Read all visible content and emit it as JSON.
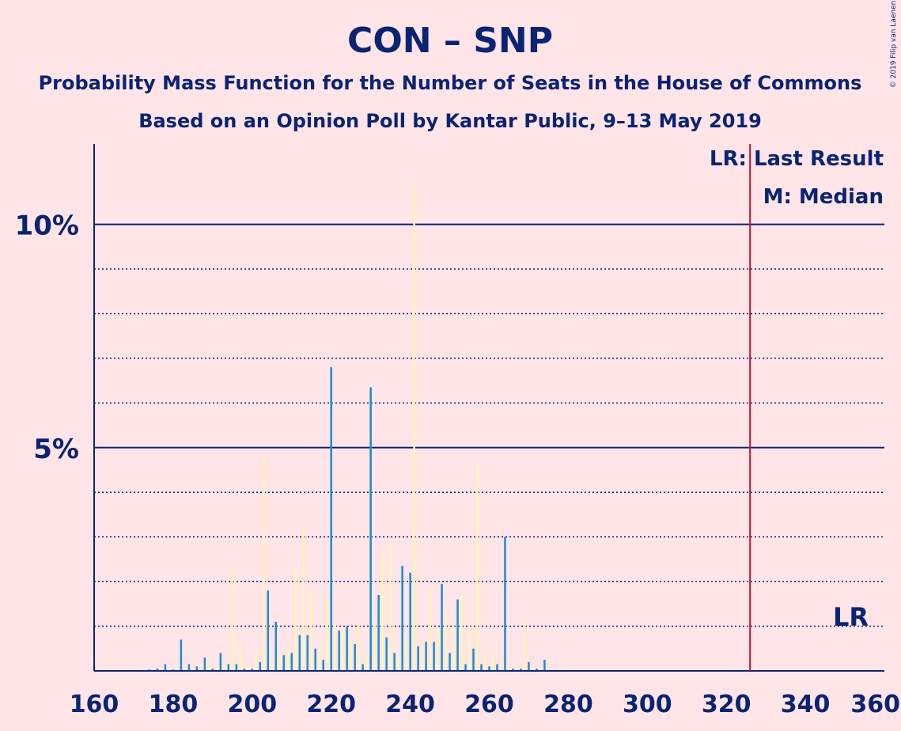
{
  "chart_data": {
    "type": "bar",
    "title": "CON – SNP",
    "subtitle": "Probability Mass Function for the Number of Seats in the House of Commons",
    "subtitle2": "Based on an Opinion Poll by Kantar Public, 9–13 May 2019",
    "copyright": "© 2019 Filip van Laenen",
    "xlim": [
      160,
      360
    ],
    "ylim": [
      0,
      11.8
    ],
    "x_ticks": [
      160,
      180,
      200,
      220,
      240,
      260,
      280,
      300,
      320,
      340,
      360
    ],
    "x_tick_labels": [
      "160",
      "180",
      "200",
      "220",
      "240",
      "260",
      "280",
      "300",
      "320",
      "340",
      "360"
    ],
    "y_major_ticks": [
      5,
      10
    ],
    "y_tick_labels": [
      "5%",
      "10%"
    ],
    "y_minor_ticks": [
      1,
      2,
      3,
      4,
      6,
      7,
      8,
      9
    ],
    "legend": {
      "position": "top-right",
      "entries": [
        "LR: Last Result",
        "M: Median"
      ]
    },
    "last_result": {
      "x": 326,
      "label": "LR"
    },
    "colors": {
      "background": "#ffe4e8",
      "axis": "#0a2472",
      "bar_blue": "#1e8bd0",
      "bar_yellow": "#fff5b5",
      "last_result_line": "#c8102e"
    },
    "series": [
      {
        "color_key": "bar_blue",
        "x": [
          174,
          176,
          178,
          180,
          182,
          184,
          186,
          188,
          190,
          192,
          194,
          196,
          198,
          200,
          202,
          204,
          206,
          208,
          210,
          212,
          214,
          216,
          218,
          220,
          222,
          224,
          226,
          228,
          230,
          232,
          234,
          236,
          238,
          240,
          242,
          244,
          246,
          248,
          250,
          252,
          254,
          256,
          258,
          260,
          262,
          264,
          266,
          268,
          270,
          272,
          274
        ],
        "values": [
          0.03,
          0.05,
          0.15,
          0.03,
          0.7,
          0.15,
          0.1,
          0.3,
          0.05,
          0.4,
          0.15,
          0.15,
          0.05,
          0.05,
          0.2,
          1.8,
          1.1,
          0.35,
          0.4,
          0.8,
          0.8,
          0.5,
          0.25,
          6.8,
          0.9,
          1.0,
          0.6,
          0.15,
          6.35,
          1.7,
          0.75,
          0.4,
          2.35,
          2.2,
          0.55,
          0.65,
          0.65,
          1.95,
          0.4,
          1.6,
          0.15,
          0.5,
          0.15,
          0.1,
          0.15,
          3.0,
          0.05,
          0.05,
          0.2,
          0.05,
          0.25
        ]
      },
      {
        "color_key": "bar_yellow",
        "x": [
          175,
          177,
          179,
          181,
          183,
          185,
          187,
          189,
          191,
          193,
          195,
          197,
          199,
          201,
          203,
          205,
          207,
          209,
          211,
          213,
          215,
          217,
          219,
          221,
          223,
          225,
          227,
          229,
          231,
          233,
          235,
          237,
          239,
          241,
          243,
          245,
          247,
          249,
          251,
          253,
          255,
          257,
          259,
          261,
          263,
          265,
          267,
          269,
          271,
          273
        ],
        "values": [
          0.05,
          0.05,
          0.05,
          0.05,
          0.1,
          0.05,
          0.15,
          0.15,
          0.1,
          0.15,
          2.3,
          0.55,
          0.1,
          0.45,
          4.8,
          0.25,
          0.45,
          0.5,
          2.3,
          3.25,
          1.8,
          0.5,
          1.65,
          1.1,
          0.9,
          0.7,
          1.1,
          0.35,
          1.05,
          2.65,
          2.85,
          0.3,
          0.7,
          10.85,
          0.65,
          1.85,
          0.95,
          1.35,
          1.0,
          1.7,
          1.0,
          4.65,
          0.35,
          0.4,
          0.25,
          0.15,
          0.1,
          1.2,
          0.1,
          0.05
        ]
      }
    ]
  }
}
